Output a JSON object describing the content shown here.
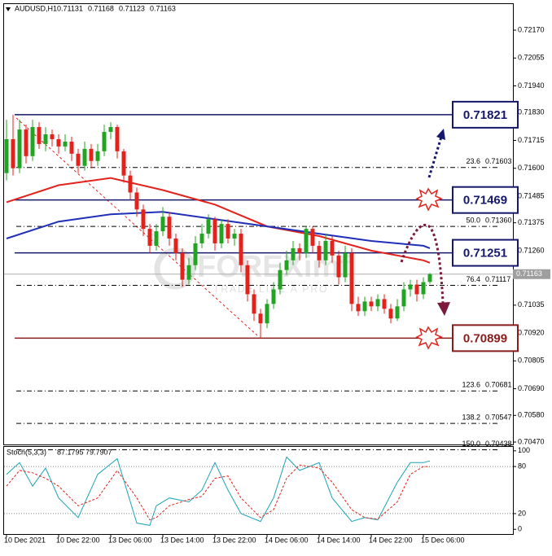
{
  "chart_data": {
    "type": "candlestick",
    "title": "AUDUSD,H1",
    "up_color": "#22a422",
    "down_color": "#e3221c",
    "categories": [
      "10 Dec 2021",
      null,
      null,
      null,
      null,
      null,
      null,
      null,
      "10 Dec 22:00",
      null,
      null,
      null,
      null,
      null,
      null,
      null,
      "13 Dec 06:00",
      null,
      null,
      null,
      null,
      null,
      null,
      null,
      "13 Dec 14:00",
      null,
      null,
      null,
      null,
      null,
      null,
      null,
      "13 Dec 22:00",
      null,
      null,
      null,
      null,
      null,
      null,
      null,
      "14 Dec 06:00",
      null,
      null,
      null,
      null,
      null,
      null,
      null,
      "14 Dec 14:00",
      null,
      null,
      null,
      null,
      null,
      null,
      null,
      "14 Dec 22:00",
      null,
      null,
      null,
      null,
      null,
      null,
      null,
      "15 Dec 06:00",
      null
    ],
    "ohlc": [
      [
        0.7158,
        0.718,
        0.7155,
        0.7172
      ],
      [
        0.7172,
        0.71821,
        0.7157,
        0.716
      ],
      [
        0.716,
        0.718,
        0.7158,
        0.7176
      ],
      [
        0.7176,
        0.7178,
        0.7162,
        0.7165
      ],
      [
        0.7165,
        0.718,
        0.7163,
        0.7177
      ],
      [
        0.7177,
        0.7179,
        0.7168,
        0.717
      ],
      [
        0.717,
        0.7177,
        0.7167,
        0.7174
      ],
      [
        0.7174,
        0.7176,
        0.7169,
        0.7172
      ],
      [
        0.7172,
        0.7174,
        0.7166,
        0.7169
      ],
      [
        0.7169,
        0.7174,
        0.7167,
        0.7171
      ],
      [
        0.7171,
        0.7173,
        0.7163,
        0.7166
      ],
      [
        0.7166,
        0.7168,
        0.7158,
        0.7161
      ],
      [
        0.7161,
        0.7171,
        0.7159,
        0.7168
      ],
      [
        0.7168,
        0.717,
        0.716,
        0.7163
      ],
      [
        0.7163,
        0.717,
        0.7161,
        0.7167
      ],
      [
        0.7167,
        0.7178,
        0.7165,
        0.7175
      ],
      [
        0.7175,
        0.7179,
        0.7172,
        0.7177
      ],
      [
        0.7177,
        0.7178,
        0.7164,
        0.7167
      ],
      [
        0.7167,
        0.7168,
        0.7154,
        0.7157
      ],
      [
        0.7157,
        0.7159,
        0.7147,
        0.715
      ],
      [
        0.715,
        0.7152,
        0.714,
        0.7143
      ],
      [
        0.7143,
        0.7145,
        0.7132,
        0.7135
      ],
      [
        0.7135,
        0.7137,
        0.7125,
        0.7128
      ],
      [
        0.7128,
        0.7137,
        0.7126,
        0.7134
      ],
      [
        0.7134,
        0.7144,
        0.7132,
        0.714
      ],
      [
        0.714,
        0.7142,
        0.7128,
        0.7131
      ],
      [
        0.7131,
        0.7133,
        0.7122,
        0.7125
      ],
      [
        0.7125,
        0.7127,
        0.7111,
        0.7114
      ],
      [
        0.7114,
        0.7123,
        0.7112,
        0.712
      ],
      [
        0.712,
        0.7132,
        0.7118,
        0.7129
      ],
      [
        0.7129,
        0.7137,
        0.7127,
        0.7133
      ],
      [
        0.7133,
        0.7141,
        0.7131,
        0.7139
      ],
      [
        0.7139,
        0.714,
        0.7126,
        0.7129
      ],
      [
        0.7129,
        0.7139,
        0.7127,
        0.7137
      ],
      [
        0.7137,
        0.7139,
        0.7129,
        0.7131
      ],
      [
        0.7131,
        0.7135,
        0.7128,
        0.7133
      ],
      [
        0.7133,
        0.7135,
        0.7117,
        0.712
      ],
      [
        0.712,
        0.7122,
        0.7105,
        0.7108
      ],
      [
        0.7108,
        0.711,
        0.7097,
        0.71
      ],
      [
        0.71,
        0.7102,
        0.70899,
        0.7096
      ],
      [
        0.7096,
        0.7106,
        0.7094,
        0.7104
      ],
      [
        0.7104,
        0.7113,
        0.7102,
        0.711
      ],
      [
        0.711,
        0.7121,
        0.7108,
        0.7118
      ],
      [
        0.7118,
        0.7126,
        0.7116,
        0.7122
      ],
      [
        0.7122,
        0.713,
        0.712,
        0.7127
      ],
      [
        0.7127,
        0.7129,
        0.7122,
        0.7125
      ],
      [
        0.7125,
        0.7136,
        0.7123,
        0.7135
      ],
      [
        0.7135,
        0.7136,
        0.7125,
        0.7128
      ],
      [
        0.7128,
        0.713,
        0.7119,
        0.7122
      ],
      [
        0.7122,
        0.7133,
        0.712,
        0.713
      ],
      [
        0.713,
        0.7132,
        0.7121,
        0.7124
      ],
      [
        0.7124,
        0.7126,
        0.7112,
        0.7115
      ],
      [
        0.7115,
        0.7128,
        0.7113,
        0.7125
      ],
      [
        0.7125,
        0.7127,
        0.7101,
        0.7104
      ],
      [
        0.7104,
        0.7107,
        0.7099,
        0.7101
      ],
      [
        0.7101,
        0.7107,
        0.7099,
        0.7105
      ],
      [
        0.7105,
        0.7107,
        0.7101,
        0.7103
      ],
      [
        0.7103,
        0.7108,
        0.7101,
        0.7106
      ],
      [
        0.7106,
        0.7108,
        0.71,
        0.7102
      ],
      [
        0.7102,
        0.7104,
        0.7096,
        0.7098
      ],
      [
        0.7098,
        0.7106,
        0.7097,
        0.7103
      ],
      [
        0.7103,
        0.7113,
        0.7101,
        0.711
      ],
      [
        0.711,
        0.7114,
        0.7107,
        0.7112
      ],
      [
        0.7112,
        0.7114,
        0.7105,
        0.7108
      ],
      [
        0.7108,
        0.7115,
        0.7106,
        0.7113
      ],
      [
        0.71131,
        0.71168,
        0.71123,
        0.71163
      ]
    ],
    "ylim": [
      0.7046,
      0.72281
    ],
    "yticks": [
      {
        "value": 0.7217,
        "label": "0.72170"
      },
      0.72055,
      {
        "value": 0.7194,
        "label": "0.71940"
      },
      {
        "value": 0.7183,
        "label": "0.71830"
      },
      0.71715,
      {
        "value": 0.716,
        "label": "0.71600"
      },
      0.71485,
      0.71375,
      {
        "value": 0.7126,
        "label": "0.71260"
      },
      0.71035,
      {
        "value": 0.7092,
        "label": "0.70920"
      },
      0.70805,
      {
        "value": 0.7069,
        "label": "0.70690"
      },
      {
        "value": 0.7058,
        "label": "0.70580"
      },
      {
        "value": 0.7047,
        "label": "0.70470"
      }
    ],
    "moving_averages": [
      {
        "color": "#e3221c",
        "x": [
          0,
          8,
          16,
          24,
          32,
          40,
          48,
          56,
          64,
          65
        ],
        "values": [
          0.7146,
          0.7153,
          0.7156,
          0.7151,
          0.7145,
          0.7136,
          0.7132,
          0.7126,
          0.7122,
          0.7121
        ]
      },
      {
        "color": "#1f2fb8",
        "x": [
          0,
          8,
          16,
          24,
          32,
          40,
          48,
          56,
          64,
          65
        ],
        "values": [
          0.7131,
          0.7138,
          0.7141,
          0.7142,
          0.7139,
          0.7136,
          0.7133,
          0.713,
          0.7128,
          0.7127
        ]
      }
    ],
    "levels": [
      {
        "value": 0.71821,
        "color": "#16186b"
      },
      {
        "value": 0.71469,
        "color": "#16186b"
      },
      {
        "value": 0.71251,
        "color": "#16186b"
      },
      {
        "value": 0.70899,
        "color": "#8b1c1c"
      }
    ],
    "fibonacci": [
      {
        "ratio": 23.6,
        "price": 0.71603
      },
      {
        "ratio": {
          "value": 50,
          "label": "50.0"
        },
        "price": {
          "value": 0.7136,
          "label": "0.71360"
        }
      },
      {
        "ratio": 76.4,
        "price": 0.71117
      },
      {
        "ratio": 123.6,
        "price": 0.70681
      },
      {
        "ratio": 138.2,
        "price": 0.70547
      },
      {
        "ratio": {
          "value": 150,
          "label": "150.0"
        },
        "price": 0.70438
      }
    ],
    "watermark": [
      "FOREXimf",
      "TRADE LIKE A PRO"
    ],
    "stochastic": {
      "title": "Stoch(5,3,3)",
      "ylim": [
        -6,
        105
      ],
      "yticks": [
        100,
        80,
        20,
        0
      ],
      "levels": [
        80,
        20
      ],
      "series": [
        {
          "color": "#1aa3b5",
          "x": [
            0,
            2,
            4,
            6,
            8,
            11,
            14,
            17,
            20,
            22,
            23,
            25,
            28,
            30,
            32,
            34,
            36,
            39,
            41,
            43,
            45,
            48,
            50,
            53,
            55,
            57,
            60,
            62,
            64,
            65
          ],
          "values": [
            70,
            85,
            55,
            78,
            40,
            15,
            70,
            90,
            8,
            5,
            30,
            40,
            35,
            50,
            85,
            50,
            20,
            10,
            40,
            92,
            75,
            85,
            40,
            10,
            15,
            12,
            60,
            85,
            85,
            87.1795
          ]
        },
        {
          "color": "#e3221c",
          "dashed": true,
          "x": [
            0,
            2,
            4,
            6,
            8,
            11,
            14,
            17,
            20,
            22,
            23,
            25,
            28,
            30,
            32,
            34,
            36,
            39,
            41,
            43,
            45,
            48,
            50,
            53,
            55,
            57,
            60,
            62,
            64,
            65
          ],
          "values": [
            55,
            75,
            72,
            65,
            55,
            30,
            40,
            75,
            40,
            12,
            15,
            30,
            38,
            42,
            65,
            68,
            40,
            15,
            25,
            65,
            82,
            78,
            60,
            25,
            15,
            13,
            35,
            70,
            80,
            79.7907
          ]
        }
      ]
    }
  }
}
